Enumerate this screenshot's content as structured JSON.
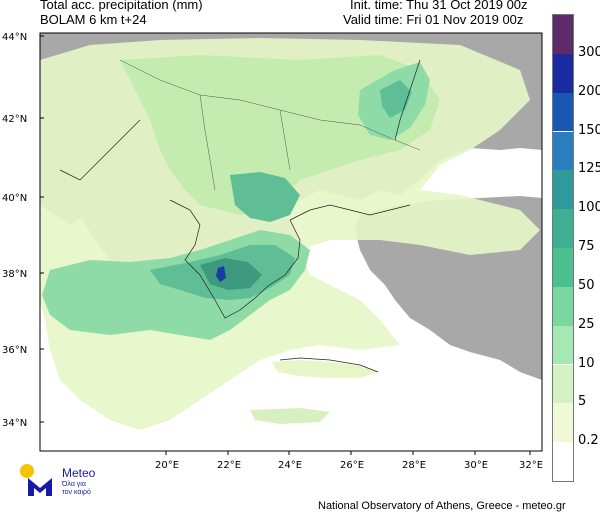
{
  "header": {
    "line1": "Total acc. precipitation (mm)",
    "line2": "BOLAM 6 km t+24",
    "init": "Init. time: Thu 31 Oct 2019 00z",
    "valid": "Valid time: Fri 01 Nov 2019 00z"
  },
  "map": {
    "lat_ticks": [
      "44°N",
      "42°N",
      "40°N",
      "38°N",
      "36°N",
      "34°N"
    ],
    "lon_ticks": [
      "20°E",
      "22°E",
      "24°E",
      "26°E",
      "28°E",
      "30°E",
      "32°E"
    ],
    "colors": {
      "sea": "#ffffff",
      "land": "#a8a8a8",
      "light": "#e6f6c6",
      "green1": "#c4ecae",
      "green2": "#8fdba8",
      "green3": "#5fbe96",
      "green4": "#3d9a7e",
      "blue": "#1b3c9e"
    }
  },
  "legend": {
    "labels": [
      "300",
      "200",
      "150",
      "125",
      "100",
      "75",
      "50",
      "25",
      "10",
      "5",
      "0.2"
    ],
    "colors": [
      "#5e2a6a",
      "#1a2aa0",
      "#1858b0",
      "#2a7ec0",
      "#2e9a9c",
      "#3fae92",
      "#4cbf8e",
      "#78d8a0",
      "#a6e8b4",
      "#d4f2c4",
      "#f0f9d6",
      "#ffffff"
    ]
  },
  "logo": {
    "title": "Meteo",
    "subtitle_1": "Όλα για",
    "subtitle_2": "τον καιρό"
  },
  "footer": "National Observatory of Athens, Greece - meteo.gr"
}
